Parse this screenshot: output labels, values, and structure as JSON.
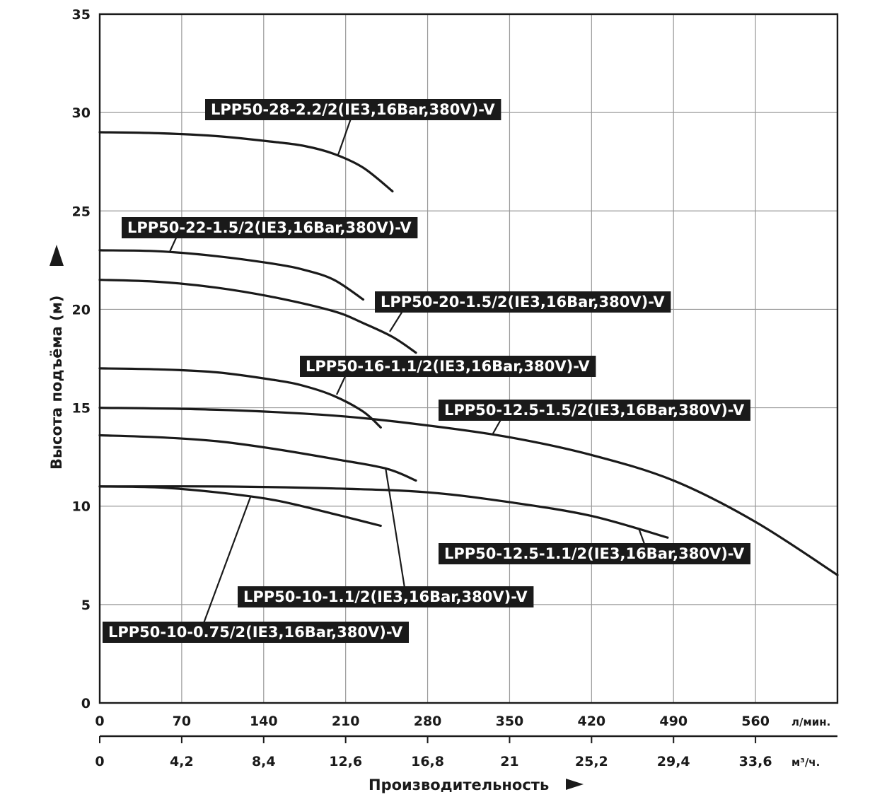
{
  "chart_data": {
    "type": "line",
    "title": "",
    "ylabel": "Высота подъёма (м)",
    "xlabel": "Производительность",
    "x_unit": "л/мин.",
    "x2_unit": "м³/ч.",
    "xlim": [
      0,
      630
    ],
    "ylim": [
      0,
      35
    ],
    "grid": true,
    "x_ticks": [
      0,
      70,
      140,
      210,
      280,
      350,
      420,
      490,
      560
    ],
    "x_tick_labels": [
      "0",
      "70",
      "140",
      "210",
      "280",
      "350",
      "420",
      "490",
      "560"
    ],
    "x2_tick_labels": [
      "0",
      "4,2",
      "8,4",
      "12,6",
      "16,8",
      "21",
      "25,2",
      "29,4",
      "33,6"
    ],
    "y_ticks": [
      0,
      5,
      10,
      15,
      20,
      25,
      30,
      35
    ],
    "y_tick_labels": [
      "0",
      "5",
      "10",
      "15",
      "20",
      "25",
      "30",
      "35"
    ],
    "series": [
      {
        "name": "LPP50-28-2.2/2(IE3,16Bar,380V)-V",
        "x": [
          0,
          50,
          100,
          150,
          175,
          200,
          225,
          250
        ],
        "y": [
          29.0,
          28.95,
          28.8,
          28.5,
          28.3,
          27.9,
          27.2,
          26.0
        ]
      },
      {
        "name": "LPP50-22-1.5/2(IE3,16Bar,380V)-V",
        "x": [
          0,
          50,
          100,
          150,
          175,
          200,
          225
        ],
        "y": [
          23.0,
          22.95,
          22.7,
          22.3,
          22.0,
          21.5,
          20.5
        ]
      },
      {
        "name": "LPP50-20-1.5/2(IE3,16Bar,380V)-V",
        "x": [
          0,
          50,
          100,
          150,
          200,
          225,
          250,
          270
        ],
        "y": [
          21.5,
          21.4,
          21.1,
          20.6,
          19.9,
          19.3,
          18.6,
          17.8
        ]
      },
      {
        "name": "LPP50-16-1.1/2(IE3,16Bar,380V)-V",
        "x": [
          0,
          50,
          100,
          150,
          175,
          200,
          225,
          240
        ],
        "y": [
          17.0,
          16.95,
          16.8,
          16.4,
          16.1,
          15.6,
          14.8,
          14.0
        ]
      },
      {
        "name": "LPP50-12.5-1.5/2(IE3,16Bar,380V)-V",
        "x": [
          0,
          100,
          200,
          280,
          350,
          420,
          490,
          560,
          630
        ],
        "y": [
          15.0,
          14.9,
          14.6,
          14.1,
          13.5,
          12.6,
          11.3,
          9.2,
          6.5
        ]
      },
      {
        "name": "LPP50-12.5-1.1/2(IE3,16Bar,380V)-V",
        "x": [
          0,
          50,
          100,
          150,
          200,
          245,
          270
        ],
        "y": [
          13.6,
          13.5,
          13.3,
          12.9,
          12.4,
          11.9,
          11.3
        ]
      },
      {
        "name": "LPP50-10-1.1/2(IE3,16Bar,380V)-V",
        "x": [
          0,
          100,
          200,
          280,
          350,
          420,
          485
        ],
        "y": [
          11.0,
          11.0,
          10.9,
          10.7,
          10.2,
          9.5,
          8.4
        ]
      },
      {
        "name": "LPP50-10-0.75/2(IE3,16Bar,380V)-V",
        "x": [
          0,
          50,
          100,
          150,
          200,
          240
        ],
        "y": [
          11.0,
          10.95,
          10.7,
          10.3,
          9.6,
          9.0
        ]
      }
    ]
  }
}
